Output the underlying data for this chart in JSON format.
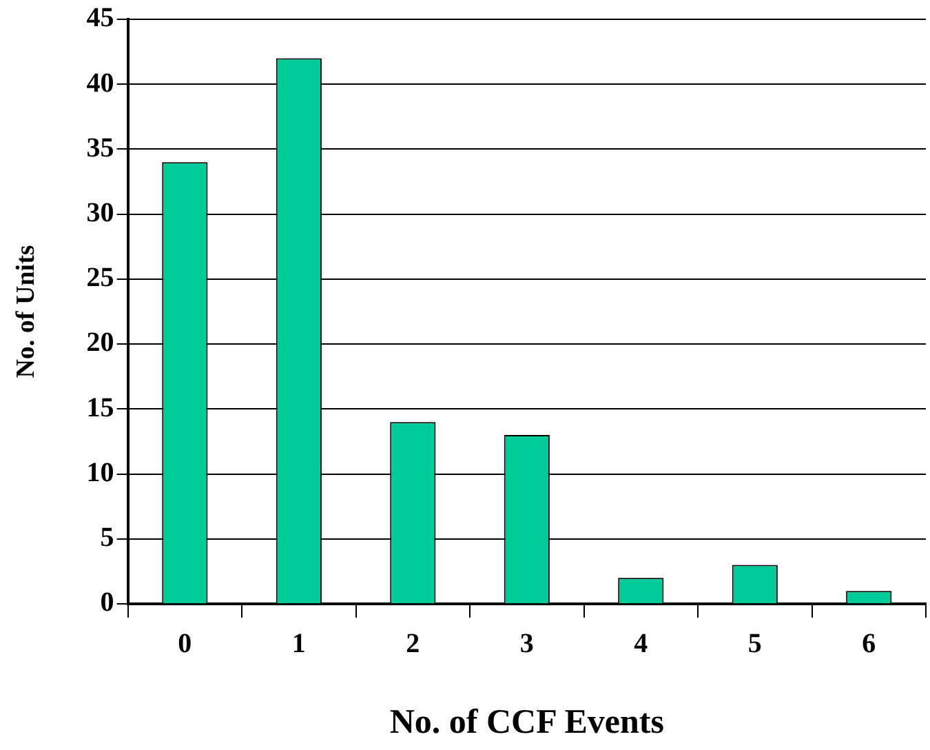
{
  "chart_data": {
    "type": "bar",
    "categories": [
      "0",
      "1",
      "2",
      "3",
      "4",
      "5",
      "6"
    ],
    "values": [
      34,
      42,
      14,
      13,
      2,
      3,
      1
    ],
    "color": "#00cc99",
    "xlabel": "No. of CCF Events",
    "ylabel": "No. of Units",
    "ylim": [
      0,
      45
    ],
    "yticks": [
      0,
      5,
      10,
      15,
      20,
      25,
      30,
      35,
      40,
      45
    ],
    "grid": "y"
  }
}
